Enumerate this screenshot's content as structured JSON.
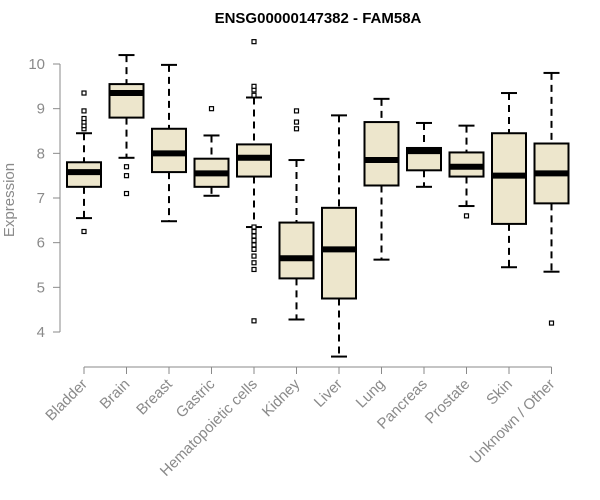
{
  "chart_data": {
    "type": "boxplot",
    "title": "ENSG00000147382 - FAM58A",
    "ylabel": "Expression",
    "xlabel": "",
    "ylim": [
      3.5,
      10.5
    ],
    "yticks": [
      4,
      5,
      6,
      7,
      8,
      9,
      10
    ],
    "box_fill": "#ede6cc",
    "categories": [
      "Bladder",
      "Brain",
      "Breast",
      "Gastric",
      "Hematopoietic cells",
      "Kidney",
      "Liver",
      "Lung",
      "Pancreas",
      "Prostate",
      "Skin",
      "Unknown / Other"
    ],
    "boxes": [
      {
        "lw": 6.55,
        "q1": 7.25,
        "med": 7.58,
        "q3": 7.8,
        "uw": 8.45,
        "out": [
          6.25,
          8.55,
          8.62,
          8.7,
          8.78,
          8.95,
          9.35
        ]
      },
      {
        "lw": 7.9,
        "q1": 8.8,
        "med": 9.35,
        "q3": 9.55,
        "uw": 10.2,
        "out": [
          7.1,
          7.5,
          7.7
        ]
      },
      {
        "lw": 6.48,
        "q1": 7.58,
        "med": 8.0,
        "q3": 8.55,
        "uw": 9.98,
        "out": []
      },
      {
        "lw": 7.05,
        "q1": 7.25,
        "med": 7.55,
        "q3": 7.88,
        "uw": 8.4,
        "out": [
          9.0
        ]
      },
      {
        "lw": 6.35,
        "q1": 7.48,
        "med": 7.9,
        "q3": 8.2,
        "uw": 9.25,
        "out": [
          4.25,
          5.4,
          5.55,
          5.7,
          5.85,
          5.95,
          6.05,
          6.15,
          6.25,
          6.35,
          9.3,
          9.42,
          9.5,
          10.5
        ]
      },
      {
        "lw": 4.28,
        "q1": 5.2,
        "med": 5.65,
        "q3": 6.45,
        "uw": 7.85,
        "out": [
          8.55,
          8.7,
          8.95
        ]
      },
      {
        "lw": 3.45,
        "q1": 4.75,
        "med": 5.85,
        "q3": 6.78,
        "uw": 8.85,
        "out": []
      },
      {
        "lw": 5.62,
        "q1": 7.28,
        "med": 7.85,
        "q3": 8.7,
        "uw": 9.22,
        "out": []
      },
      {
        "lw": 7.25,
        "q1": 7.62,
        "med": 8.05,
        "q3": 8.12,
        "uw": 8.68,
        "out": []
      },
      {
        "lw": 6.82,
        "q1": 7.48,
        "med": 7.7,
        "q3": 8.02,
        "uw": 8.62,
        "out": [
          6.6
        ]
      },
      {
        "lw": 5.45,
        "q1": 6.42,
        "med": 7.5,
        "q3": 8.45,
        "uw": 9.35,
        "out": []
      },
      {
        "lw": 5.35,
        "q1": 6.88,
        "med": 7.55,
        "q3": 8.22,
        "uw": 9.8,
        "out": [
          4.2
        ]
      }
    ]
  }
}
